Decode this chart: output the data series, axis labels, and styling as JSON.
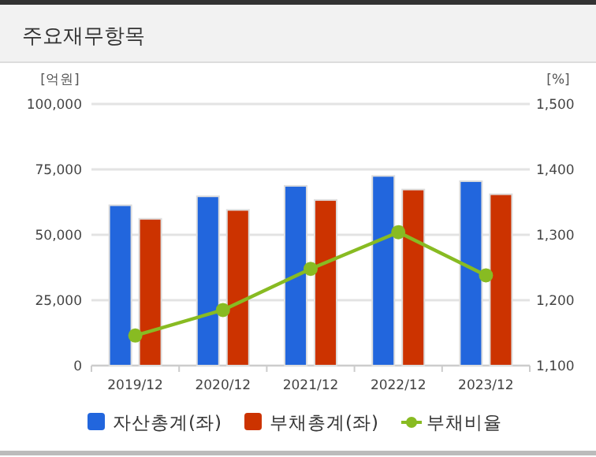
{
  "chart_data": {
    "type": "bar",
    "title": "주요재무항목",
    "ylabel": "[억원]",
    "y2label": "[%]",
    "categories": [
      "2019/12",
      "2020/12",
      "2021/12",
      "2022/12",
      "2023/12"
    ],
    "series": [
      {
        "name": "자산총계(좌)",
        "color": "#2266dd",
        "values": [
          61300,
          64700,
          68700,
          72500,
          70500
        ]
      },
      {
        "name": "부채총계(좌)",
        "color": "#cc3300",
        "values": [
          56100,
          59500,
          63300,
          67300,
          65500
        ]
      },
      {
        "name": "부채비율",
        "type": "line",
        "axis": "y2",
        "color": "#88bb22",
        "marker": "circle",
        "values": [
          1146,
          1185,
          1248,
          1304,
          1238
        ]
      }
    ],
    "ylim": [
      0,
      100000
    ],
    "yticks": [
      {
        "value": 0,
        "label": "0"
      },
      {
        "value": 25000,
        "label": "25,000"
      },
      {
        "value": 50000,
        "label": "50,000"
      },
      {
        "value": 75000,
        "label": "75,000"
      },
      {
        "value": 100000,
        "label": "100,000"
      }
    ],
    "y2lim": [
      1100,
      1500
    ],
    "y2ticks": [
      {
        "value": 1100,
        "label": "1,100"
      },
      {
        "value": 1200,
        "label": "1,200"
      },
      {
        "value": 1300,
        "label": "1,300"
      },
      {
        "value": 1400,
        "label": "1,400"
      },
      {
        "value": 1500,
        "label": "1,500"
      }
    ],
    "grid": "y",
    "legend": "bottom"
  }
}
